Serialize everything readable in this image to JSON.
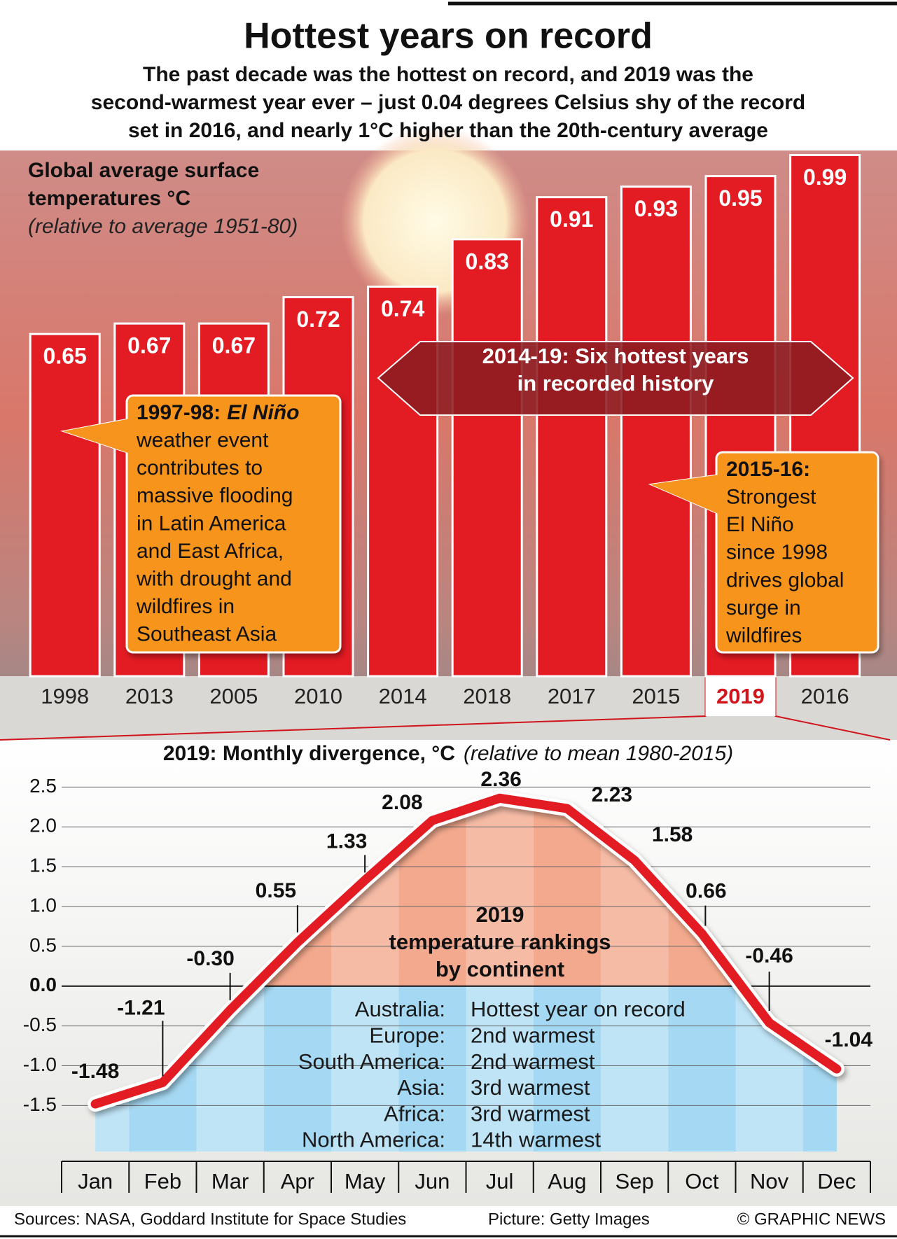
{
  "chart_data": [
    {
      "type": "bar",
      "title": "Hottest years on record",
      "subtitle": [
        "The past decade was the hottest on record, and 2019 was the",
        "second-warmest year ever – just 0.04 degrees Celsius shy of the record",
        "set in 2016, and nearly 1°C higher than the 20th-century average"
      ],
      "y_label": [
        "Global average surface",
        "temperatures °C"
      ],
      "y_label_note": "(relative to average 1951-80)",
      "categories": [
        "1998",
        "2013",
        "2005",
        "2010",
        "2014",
        "2018",
        "2017",
        "2015",
        "2019",
        "2016"
      ],
      "values": [
        0.65,
        0.67,
        0.67,
        0.72,
        0.74,
        0.83,
        0.91,
        0.93,
        0.95,
        0.99
      ],
      "color": "#e31b23",
      "highlight": {
        "category": "2019",
        "color": "#d0151c"
      },
      "annotations": [
        {
          "lines": [
            "2014-19: Six hottest years",
            "in recorded history"
          ]
        },
        {
          "heading": "1997-98:",
          "heading_em": "El Niño",
          "lines": [
            "weather event",
            "contributes to",
            "massive flooding",
            "in Latin America",
            "and East Africa,",
            "with drought and",
            "wildfires in",
            "Southeast Asia"
          ]
        },
        {
          "heading": "2015-16:",
          "lines": [
            "Strongest",
            "El Niño",
            "since 1998",
            "drives global",
            "surge in",
            "wildfires"
          ]
        }
      ]
    },
    {
      "type": "line",
      "title": "2019: Monthly divergence, °C",
      "title_note": "(relative to mean 1980-2015)",
      "categories": [
        "Jan",
        "Feb",
        "Mar",
        "Apr",
        "May",
        "Jun",
        "Jul",
        "Aug",
        "Sep",
        "Oct",
        "Nov",
        "Dec"
      ],
      "values": [
        -1.48,
        -1.21,
        -0.3,
        0.55,
        1.33,
        2.08,
        2.36,
        2.23,
        1.58,
        0.66,
        -0.46,
        -1.04
      ],
      "value_labels": [
        "-1.48",
        "-1.21",
        "-0.30",
        "0.55",
        "1.33",
        "2.08",
        "2.36",
        "2.23",
        "1.58",
        "0.66",
        "-0.46",
        "-1.04"
      ],
      "color": "#e31b23",
      "ylim": [
        -2.2,
        2.6
      ],
      "yticks": [
        {
          "value": 2.5,
          "label": "2.5"
        },
        {
          "value": 2,
          "label": "2.0"
        },
        {
          "value": 1.5,
          "label": "1.5"
        },
        {
          "value": 1,
          "label": "1.0"
        },
        {
          "value": 0.5,
          "label": "0.5"
        },
        {
          "value": 0,
          "label": "0.0"
        },
        {
          "value": -0.5,
          "label": "-0.5"
        },
        {
          "value": -1,
          "label": "-1.0"
        },
        {
          "value": -1.5,
          "label": "-1.5"
        }
      ],
      "grid": true,
      "inset": {
        "title": [
          "2019",
          "temperature rankings",
          "by continent"
        ],
        "rows": [
          [
            "Australia:",
            "Hottest year on record"
          ],
          [
            "Europe:",
            "2nd warmest"
          ],
          [
            "South America:",
            "2nd warmest"
          ],
          [
            "Asia:",
            "3rd warmest"
          ],
          [
            "Africa:",
            "3rd warmest"
          ],
          [
            "North America:",
            "14th warmest"
          ]
        ]
      }
    }
  ],
  "footer": {
    "sources": "Sources: NASA, Goddard Institute for Space Studies",
    "picture": "Picture: Getty Images",
    "credit": "© GRAPHIC NEWS"
  }
}
